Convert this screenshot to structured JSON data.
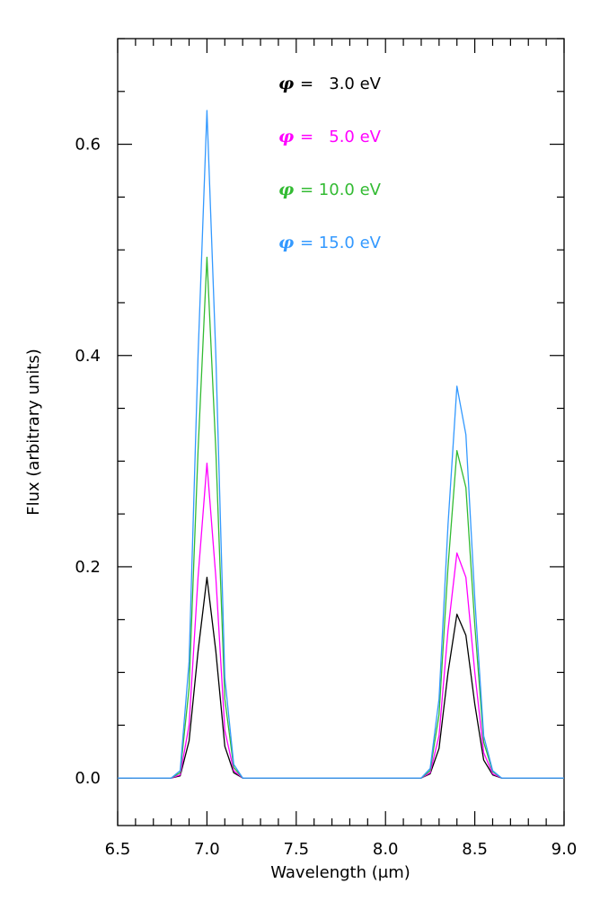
{
  "chart_data": {
    "type": "line",
    "title": "",
    "xlabel": "Wavelength (μm)",
    "ylabel": "Flux (arbitrary units)",
    "xlim": [
      6.5,
      9.0
    ],
    "ylim": [
      -0.045,
      0.7
    ],
    "xticks": [
      "6.5",
      "7.0",
      "7.5",
      "8.0",
      "8.5",
      "9.0"
    ],
    "yticks": [
      "0.0",
      "0.2",
      "0.4",
      "0.6"
    ],
    "x_minor_step": 0.1,
    "y_minor_step": 0.05,
    "grid": false,
    "legend_position": "top-center",
    "x": [
      6.5,
      6.8,
      6.85,
      6.9,
      6.95,
      7.0,
      7.05,
      7.1,
      7.15,
      7.2,
      8.2,
      8.25,
      8.3,
      8.35,
      8.4,
      8.45,
      8.5,
      8.55,
      8.6,
      8.65,
      8.7,
      9.0
    ],
    "series": [
      {
        "name": "φ =   3.0 eV",
        "symbol": "φ",
        "label_value": "=   3.0 eV",
        "color": "#000000",
        "values": [
          0,
          0,
          0.002,
          0.035,
          0.12,
          0.19,
          0.12,
          0.03,
          0.005,
          0,
          0,
          0.004,
          0.028,
          0.1,
          0.155,
          0.135,
          0.07,
          0.017,
          0.003,
          0,
          0,
          0
        ]
      },
      {
        "name": "φ =   5.0 eV",
        "symbol": "φ",
        "label_value": "=   5.0 eV",
        "color": "#ff00ff",
        "values": [
          0,
          0,
          0.003,
          0.05,
          0.19,
          0.298,
          0.19,
          0.045,
          0.007,
          0,
          0,
          0.005,
          0.04,
          0.14,
          0.213,
          0.19,
          0.1,
          0.024,
          0.004,
          0,
          0,
          0
        ]
      },
      {
        "name": "φ = 10.0 eV",
        "symbol": "φ",
        "label_value": "= 10.0 eV",
        "color": "#33bb33",
        "values": [
          0,
          0,
          0.005,
          0.085,
          0.31,
          0.493,
          0.31,
          0.075,
          0.01,
          0,
          0,
          0.007,
          0.06,
          0.2,
          0.31,
          0.275,
          0.145,
          0.034,
          0.006,
          0,
          0,
          0
        ]
      },
      {
        "name": "φ = 15.0 eV",
        "symbol": "φ",
        "label_value": "= 15.0 eV",
        "color": "#3399ff",
        "values": [
          0,
          0,
          0.007,
          0.11,
          0.4,
          0.632,
          0.4,
          0.095,
          0.013,
          0,
          0,
          0.009,
          0.075,
          0.24,
          0.371,
          0.325,
          0.17,
          0.04,
          0.007,
          0,
          0,
          0
        ]
      }
    ]
  }
}
